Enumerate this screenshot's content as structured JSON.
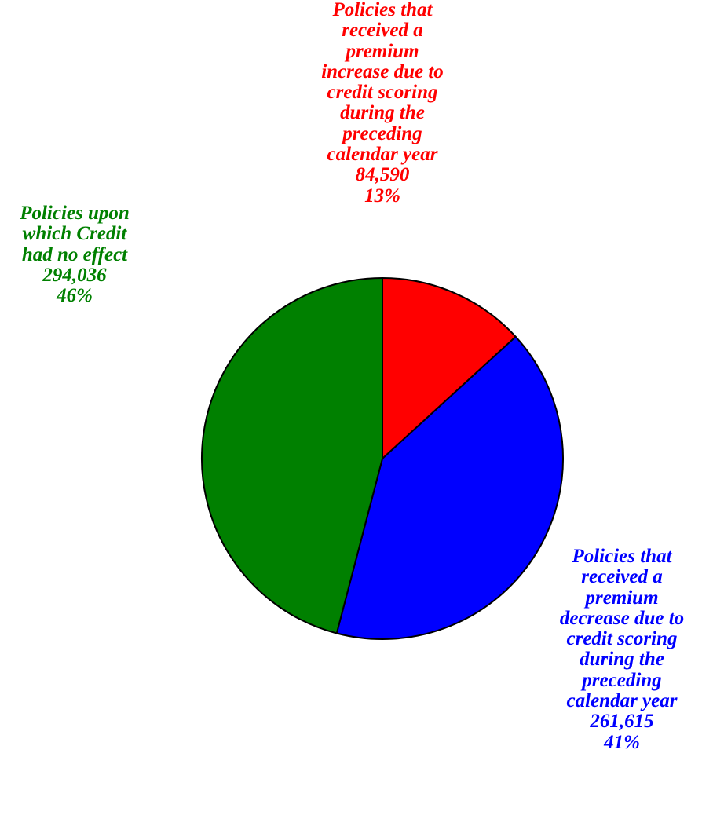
{
  "chart_data": {
    "type": "pie",
    "start_angle_deg": 0,
    "direction": "clockwise",
    "slices": [
      {
        "label_lines": [
          "Policies that",
          "received a",
          "premium",
          "increase due to",
          "credit scoring",
          "during the",
          "preceding",
          "calendar year"
        ],
        "value": 84590,
        "value_text": "84,590",
        "percent_text": "13%",
        "color": "#ff0000"
      },
      {
        "label_lines": [
          "Policies that",
          "received a",
          "premium",
          "decrease due to",
          "credit scoring",
          "during the",
          "preceding",
          "calendar year"
        ],
        "value": 261615,
        "value_text": "261,615",
        "percent_text": "41%",
        "color": "#0000ff"
      },
      {
        "label_lines": [
          "Policies upon",
          "which Credit",
          "had no effect"
        ],
        "value": 294036,
        "value_text": "294,036",
        "percent_text": "46%",
        "color": "#008000"
      }
    ]
  }
}
